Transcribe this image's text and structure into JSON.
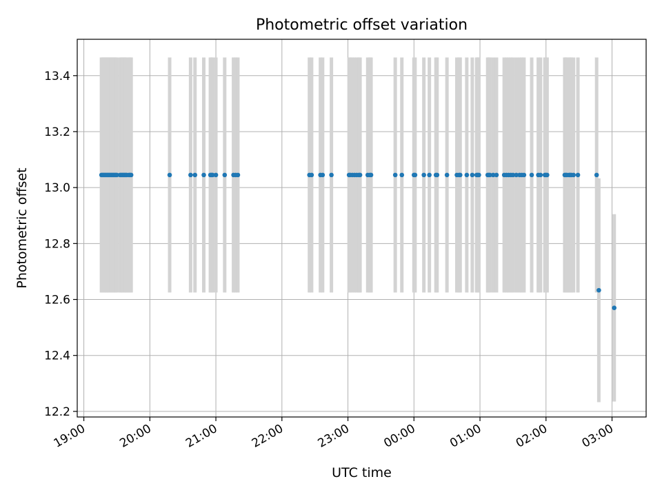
{
  "chart_data": {
    "type": "scatter",
    "title": "Photometric offset variation",
    "xlabel": "UTC time",
    "ylabel": "Photometric offset",
    "grid": true,
    "xlim": [
      "18:54",
      "03:31"
    ],
    "ylim": [
      12.18,
      13.53
    ],
    "xticks": [
      "19:00",
      "20:00",
      "21:00",
      "22:00",
      "23:00",
      "00:00",
      "01:00",
      "02:00",
      "03:00"
    ],
    "yticks": [
      "12.2",
      "12.4",
      "12.6",
      "12.8",
      "13.0",
      "13.2",
      "13.4"
    ],
    "marker_color": "#1f77b4",
    "errorbar_color": "#d3d3d3",
    "series": [
      {
        "x": [
          "19:16",
          "19:17",
          "19:18",
          "19:19",
          "19:20",
          "19:21",
          "19:22",
          "19:23",
          "19:24",
          "19:25",
          "19:26",
          "19:27",
          "19:28",
          "19:29",
          "19:30",
          "19:33",
          "19:34",
          "19:35",
          "19:36",
          "19:37",
          "19:38",
          "19:39",
          "19:41",
          "19:42",
          "19:43",
          "20:18",
          "20:37",
          "20:41",
          "20:49",
          "20:55",
          "20:56",
          "20:57",
          "21:00",
          "21:08",
          "21:16",
          "21:18",
          "21:20",
          "22:25",
          "22:27",
          "22:35",
          "22:37",
          "22:45",
          "23:01",
          "23:02",
          "23:04",
          "23:06",
          "23:08",
          "23:10",
          "23:11",
          "23:18",
          "23:20",
          "23:21",
          "23:43",
          "23:49",
          "00:00",
          "00:01",
          "00:09",
          "00:14",
          "00:20",
          "00:21",
          "00:30",
          "00:39",
          "00:41",
          "00:42",
          "00:48",
          "00:53",
          "00:57",
          "00:58",
          "00:59",
          "01:07",
          "01:08",
          "01:09",
          "01:12",
          "01:15",
          "01:22",
          "01:24",
          "01:26",
          "01:28",
          "01:30",
          "01:33",
          "01:36",
          "01:38",
          "01:40",
          "01:47",
          "01:53",
          "01:55",
          "01:59",
          "02:00",
          "02:01",
          "02:17",
          "02:18",
          "02:19",
          "02:21",
          "02:22",
          "02:23",
          "02:25",
          "02:29",
          "02:46",
          "02:48",
          "03:02"
        ],
        "y": [
          13.045,
          13.045,
          13.045,
          13.045,
          13.045,
          13.045,
          13.045,
          13.045,
          13.045,
          13.045,
          13.045,
          13.045,
          13.045,
          13.045,
          13.045,
          13.045,
          13.045,
          13.045,
          13.045,
          13.045,
          13.045,
          13.045,
          13.045,
          13.045,
          13.045,
          13.045,
          13.045,
          13.045,
          13.045,
          13.045,
          13.045,
          13.045,
          13.045,
          13.045,
          13.045,
          13.045,
          13.045,
          13.045,
          13.045,
          13.045,
          13.045,
          13.045,
          13.045,
          13.045,
          13.045,
          13.045,
          13.045,
          13.045,
          13.045,
          13.045,
          13.045,
          13.045,
          13.045,
          13.045,
          13.045,
          13.045,
          13.045,
          13.045,
          13.045,
          13.045,
          13.045,
          13.045,
          13.045,
          13.045,
          13.045,
          13.045,
          13.045,
          13.045,
          13.045,
          13.045,
          13.045,
          13.045,
          13.045,
          13.045,
          13.045,
          13.045,
          13.045,
          13.045,
          13.045,
          13.045,
          13.045,
          13.045,
          13.045,
          13.045,
          13.045,
          13.045,
          13.045,
          13.045,
          13.045,
          13.045,
          13.045,
          13.045,
          13.045,
          13.045,
          13.045,
          13.045,
          13.045,
          13.045,
          12.633,
          12.57
        ],
        "error": [
          0.42,
          0.42,
          0.42,
          0.42,
          0.42,
          0.42,
          0.42,
          0.42,
          0.42,
          0.42,
          0.42,
          0.42,
          0.42,
          0.42,
          0.42,
          0.42,
          0.42,
          0.42,
          0.42,
          0.42,
          0.42,
          0.42,
          0.42,
          0.42,
          0.42,
          0.42,
          0.42,
          0.42,
          0.42,
          0.42,
          0.42,
          0.42,
          0.42,
          0.42,
          0.42,
          0.42,
          0.42,
          0.42,
          0.42,
          0.42,
          0.42,
          0.42,
          0.42,
          0.42,
          0.42,
          0.42,
          0.42,
          0.42,
          0.42,
          0.42,
          0.42,
          0.42,
          0.42,
          0.42,
          0.42,
          0.42,
          0.42,
          0.42,
          0.42,
          0.42,
          0.42,
          0.42,
          0.42,
          0.42,
          0.42,
          0.42,
          0.42,
          0.42,
          0.42,
          0.42,
          0.42,
          0.42,
          0.42,
          0.42,
          0.42,
          0.42,
          0.42,
          0.42,
          0.42,
          0.42,
          0.42,
          0.42,
          0.42,
          0.42,
          0.42,
          0.42,
          0.42,
          0.42,
          0.42,
          0.42,
          0.42,
          0.42,
          0.42,
          0.42,
          0.42,
          0.42,
          0.42,
          0.42,
          0.4,
          0.335
        ]
      }
    ]
  }
}
